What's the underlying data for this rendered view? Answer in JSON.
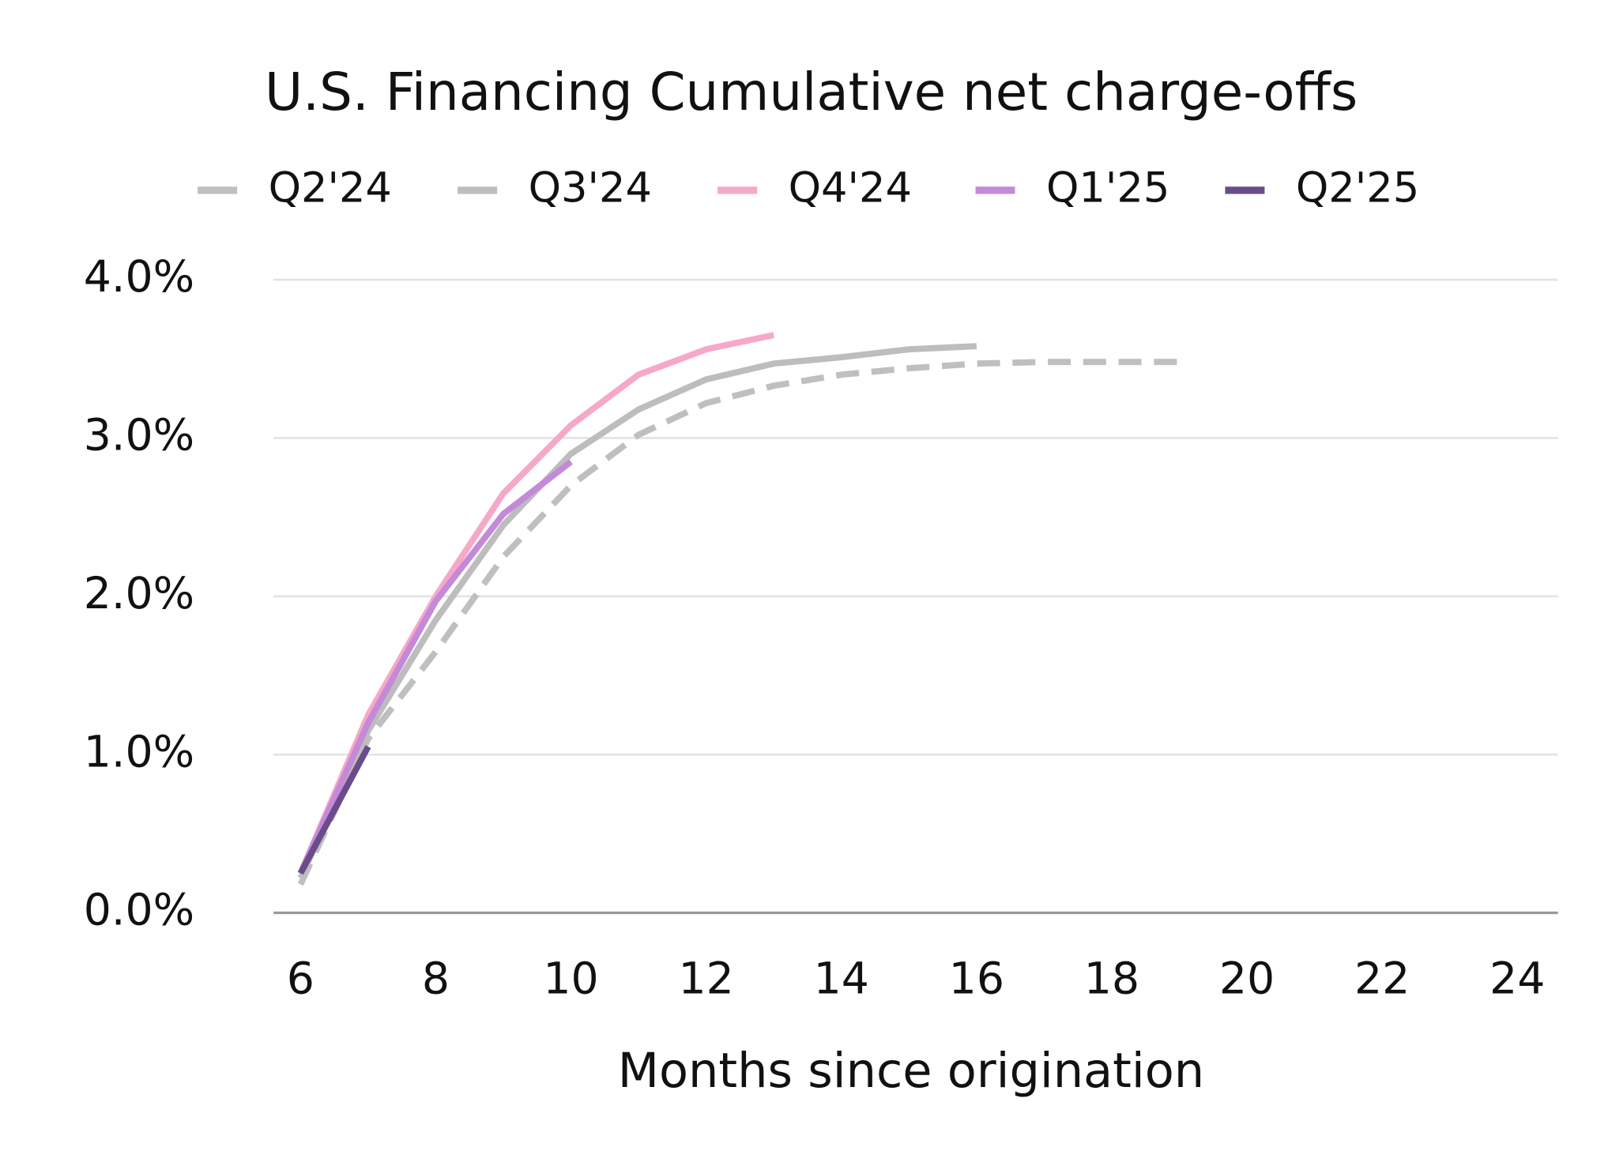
{
  "chart_data": {
    "type": "line",
    "title": "U.S. Financing Cumulative net charge-offs",
    "x_label": "Months since origination",
    "xlim": [
      5.6,
      24.6
    ],
    "xticks": [
      6,
      8,
      10,
      12,
      14,
      16,
      18,
      20,
      22,
      24
    ],
    "ylim": [
      0,
      4
    ],
    "yticks": [
      {
        "value": 0,
        "label": "0.0%"
      },
      {
        "value": 1,
        "label": "1.0%"
      },
      {
        "value": 2,
        "label": "2.0%"
      },
      {
        "value": 3,
        "label": "3.0%"
      },
      {
        "value": 4,
        "label": "4.0%"
      }
    ],
    "grid": true,
    "legend": "top",
    "series": [
      {
        "name": "Q2'24",
        "color": "#bfbfbf",
        "dashed": true,
        "x": [
          6,
          7,
          8,
          9,
          10,
          11,
          12,
          13,
          14,
          15,
          16,
          17,
          18,
          19
        ],
        "values": [
          0.18,
          1.1,
          1.65,
          2.25,
          2.7,
          3.02,
          3.22,
          3.33,
          3.4,
          3.44,
          3.47,
          3.48,
          3.48,
          3.48
        ]
      },
      {
        "name": "Q3'24",
        "color": "#bdbdbd",
        "dashed": false,
        "x": [
          6,
          7,
          8,
          9,
          10,
          11,
          12,
          13,
          14,
          15,
          16
        ],
        "values": [
          0.22,
          1.15,
          1.85,
          2.45,
          2.9,
          3.18,
          3.37,
          3.47,
          3.51,
          3.56,
          3.58
        ]
      },
      {
        "name": "Q4'24",
        "color": "#f6a8c8",
        "dashed": false,
        "x": [
          6,
          7,
          8,
          9,
          10,
          11,
          12,
          13
        ],
        "values": [
          0.25,
          1.25,
          2.0,
          2.65,
          3.08,
          3.4,
          3.56,
          3.65
        ]
      },
      {
        "name": "Q1'25",
        "color": "#c48ad8",
        "dashed": false,
        "x": [
          6,
          7,
          8,
          9,
          10
        ],
        "values": [
          0.25,
          1.2,
          1.97,
          2.52,
          2.85
        ]
      },
      {
        "name": "Q2'25",
        "color": "#6a4c8c",
        "dashed": false,
        "x": [
          6,
          7
        ],
        "values": [
          0.25,
          1.05
        ]
      }
    ]
  }
}
